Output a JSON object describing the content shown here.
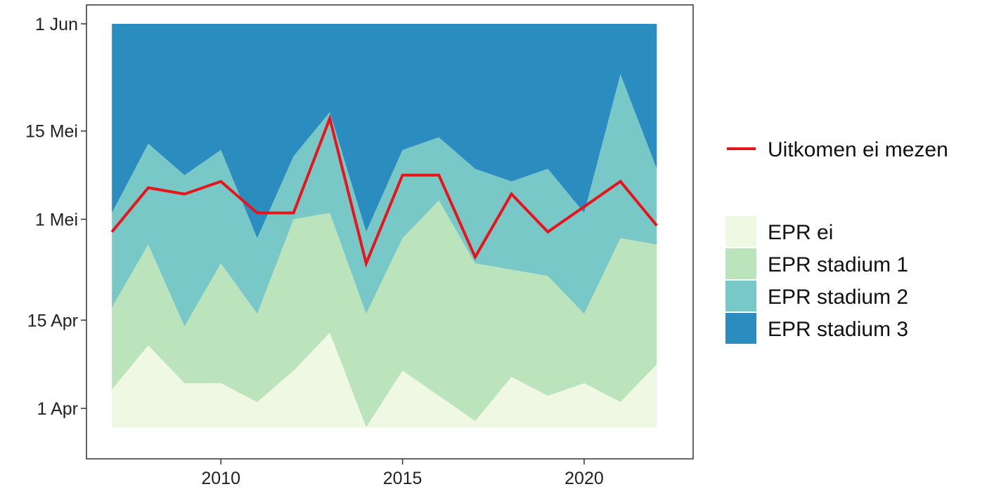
{
  "chart_data": {
    "type": "area",
    "title": "",
    "xlabel": "",
    "ylabel": "",
    "x": [
      2007,
      2008,
      2009,
      2010,
      2011,
      2012,
      2013,
      2014,
      2015,
      2016,
      2017,
      2018,
      2019,
      2020,
      2021,
      2022
    ],
    "xlim": [
      2006.3,
      2023
    ],
    "x_ticks": [
      {
        "value": 2010,
        "label": "2010"
      },
      {
        "value": 2015,
        "label": "2015"
      },
      {
        "value": 2020,
        "label": "2020"
      }
    ],
    "ylim": [
      "24 Mar",
      "4 Jun"
    ],
    "y_ticks": [
      {
        "value": "1 Apr",
        "label": "1 Apr"
      },
      {
        "value": "15 Apr",
        "label": "15 Apr"
      },
      {
        "value": "1 Mei",
        "label": "1 Mei"
      },
      {
        "value": "15 Mei",
        "label": "15 Mei"
      },
      {
        "value": "1 Jun",
        "label": "1 Jun"
      }
    ],
    "area_baseline": "29 Mar",
    "area_top": "1 Jun",
    "series": [
      {
        "name": "EPR ei",
        "kind": "area",
        "color": "#EFF8E2",
        "upper": [
          "4 Apr",
          "11 Apr",
          "5 Apr",
          "5 Apr",
          "2 Apr",
          "7 Apr",
          "13 Apr",
          "29 Mar",
          "7 Apr",
          "3 Apr",
          "30 Mar",
          "6 Apr",
          "3 Apr",
          "5 Apr",
          "2 Apr",
          "8 Apr"
        ]
      },
      {
        "name": "EPR stadium 1",
        "kind": "area",
        "color": "#BBE4BC",
        "upper": [
          "17 Apr",
          "27 Apr",
          "14 Apr",
          "24 Apr",
          "16 Apr",
          "1 May",
          "2 May",
          "16 Apr",
          "28 Apr",
          "4 May",
          "24 Apr",
          "23 Apr",
          "22 Apr",
          "16 Apr",
          "28 Apr",
          "27 Apr"
        ]
      },
      {
        "name": "EPR stadium 2",
        "kind": "area",
        "color": "#77C8C6",
        "upper": [
          "2 May",
          "13 May",
          "8 May",
          "12 May",
          "28 Apr",
          "11 May",
          "18 May",
          "29 Apr",
          "12 May",
          "14 May",
          "9 May",
          "7 May",
          "9 May",
          "2 May",
          "24 May",
          "9 May"
        ]
      },
      {
        "name": "EPR stadium 3",
        "kind": "area",
        "color": "#2B8CC0",
        "upper": [
          "1 Jun",
          "1 Jun",
          "1 Jun",
          "1 Jun",
          "1 Jun",
          "1 Jun",
          "1 Jun",
          "1 Jun",
          "1 Jun",
          "1 Jun",
          "1 Jun",
          "1 Jun",
          "1 Jun",
          "1 Jun",
          "1 Jun",
          "1 Jun"
        ]
      },
      {
        "name": "Uitkomen ei mezen",
        "kind": "line",
        "color": "#E8141C",
        "values": [
          "29 Apr",
          "6 May",
          "5 May",
          "7 May",
          "2 May",
          "2 May",
          "17 May",
          "24 Apr",
          "8 May",
          "8 May",
          "25 Apr",
          "5 May",
          "29 Apr",
          "3 May",
          "7 May",
          "30 Apr"
        ]
      }
    ],
    "legend": {
      "position": "right",
      "line_entries": [
        "Uitkomen ei mezen"
      ],
      "area_entries": [
        "EPR ei",
        "EPR stadium 1",
        "EPR stadium 2",
        "EPR stadium 3"
      ]
    },
    "grid": false
  }
}
